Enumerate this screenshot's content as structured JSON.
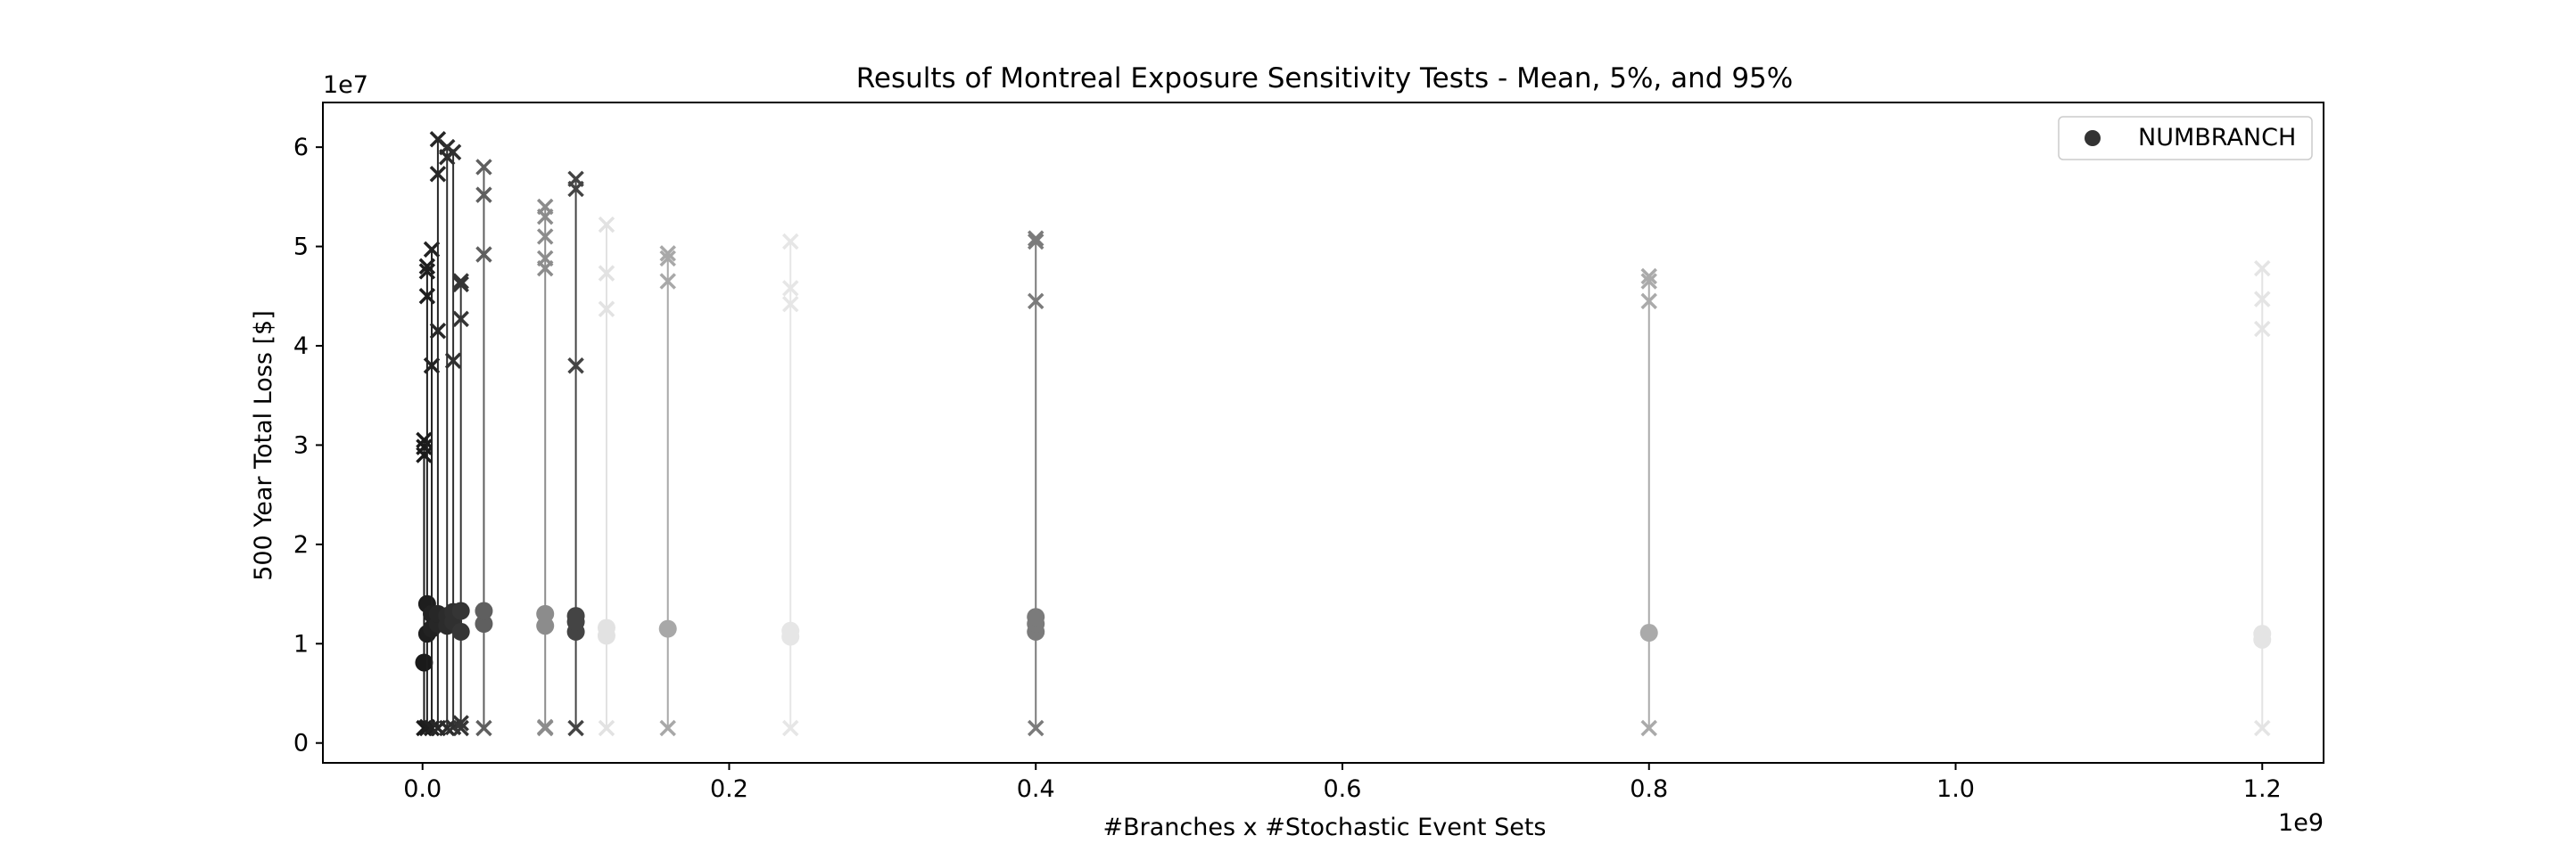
{
  "chart_data": {
    "type": "scatter",
    "title": "Results of Montreal Exposure Sensitivity Tests - Mean, 5%, and 95%",
    "xlabel": "#Branches x #Stochastic Event Sets",
    "ylabel": "500 Year Total Loss [$]",
    "x_offset_text": "1e9",
    "y_offset_text": "1e7",
    "x_scale": 1000000000.0,
    "y_scale": 10000000.0,
    "xlim": [
      -0.065,
      1.24
    ],
    "ylim": [
      -0.2,
      6.45
    ],
    "xticks": [
      0.0,
      0.2,
      0.4,
      0.6,
      0.8,
      1.0,
      1.2
    ],
    "xtick_labels": [
      "0.0",
      "0.2",
      "0.4",
      "0.6",
      "0.8",
      "1.0",
      "1.2"
    ],
    "yticks": [
      0,
      1,
      2,
      3,
      4,
      5,
      6
    ],
    "ytick_labels": [
      "0",
      "1",
      "2",
      "3",
      "4",
      "5",
      "6"
    ],
    "grid": false,
    "legend": {
      "position": "top-right",
      "entries": [
        {
          "label": "NUMBRANCH",
          "marker": "circle",
          "color": "#333333"
        }
      ]
    },
    "units": {
      "x": "#Branches x #Stochastic Event Sets (x1e9)",
      "y": "$ (x1e7)"
    },
    "groups": [
      {
        "x": 0.001,
        "color": "#1a1a1a",
        "means": [
          0.81
        ],
        "p5": [
          0.15
        ],
        "p95": [
          2.9,
          2.98,
          3.05
        ]
      },
      {
        "x": 0.003,
        "color": "#1e1e1e",
        "means": [
          1.1,
          1.4
        ],
        "p5": [
          0.15,
          0.16
        ],
        "p95": [
          4.5,
          4.75,
          4.8
        ]
      },
      {
        "x": 0.006,
        "color": "#222222",
        "means": [
          1.15,
          1.3
        ],
        "p5": [
          0.15
        ],
        "p95": [
          3.8,
          4.97
        ]
      },
      {
        "x": 0.01,
        "color": "#272727",
        "means": [
          1.2,
          1.3
        ],
        "p5": [
          0.15
        ],
        "p95": [
          4.15,
          5.73,
          6.08
        ]
      },
      {
        "x": 0.016,
        "color": "#2c2c2c",
        "means": [
          1.18,
          1.28
        ],
        "p5": [
          0.15
        ],
        "p95": [
          5.9,
          6.0
        ]
      },
      {
        "x": 0.02,
        "color": "#303030",
        "means": [
          1.22,
          1.32
        ],
        "p5": [
          0.16
        ],
        "p95": [
          3.85,
          5.95
        ]
      },
      {
        "x": 0.025,
        "color": "#353535",
        "means": [
          1.12,
          1.33
        ],
        "p5": [
          0.15,
          0.2
        ],
        "p95": [
          4.27,
          4.62,
          4.65
        ]
      },
      {
        "x": 0.04,
        "color": "#5f5f5f",
        "means": [
          1.2,
          1.33
        ],
        "p5": [
          0.15
        ],
        "p95": [
          4.92,
          5.52,
          5.8
        ]
      },
      {
        "x": 0.08,
        "color": "#8c8c8c",
        "means": [
          1.18,
          1.3
        ],
        "p5": [
          0.15,
          0.16
        ],
        "p95": [
          4.78,
          4.88,
          5.1,
          5.3,
          5.4
        ]
      },
      {
        "x": 0.1,
        "color": "#444444",
        "means": [
          1.12,
          1.22,
          1.28
        ],
        "p5": [
          0.15
        ],
        "p95": [
          3.8,
          5.58,
          5.68
        ]
      },
      {
        "x": 0.12,
        "color": "#e2e2e2",
        "means": [
          1.08,
          1.16
        ],
        "p5": [
          0.15
        ],
        "p95": [
          4.37,
          4.73,
          5.22
        ]
      },
      {
        "x": 0.16,
        "color": "#a8a8a8",
        "means": [
          1.15
        ],
        "p5": [
          0.15
        ],
        "p95": [
          4.65,
          4.88,
          4.93
        ]
      },
      {
        "x": 0.24,
        "color": "#e6e6e6",
        "means": [
          1.07,
          1.13
        ],
        "p5": [
          0.15
        ],
        "p95": [
          4.42,
          4.58,
          5.05
        ]
      },
      {
        "x": 0.4,
        "color": "#7b7b7b",
        "means": [
          1.12,
          1.2,
          1.27
        ],
        "p5": [
          0.15
        ],
        "p95": [
          4.45,
          5.05,
          5.08
        ]
      },
      {
        "x": 0.8,
        "color": "#aaaaaa",
        "means": [
          1.11
        ],
        "p5": [
          0.15
        ],
        "p95": [
          4.45,
          4.65,
          4.7
        ]
      },
      {
        "x": 1.2,
        "color": "#e4e4e4",
        "means": [
          1.04,
          1.1
        ],
        "p5": [
          0.15
        ],
        "p95": [
          4.17,
          4.47,
          4.78
        ]
      }
    ]
  }
}
